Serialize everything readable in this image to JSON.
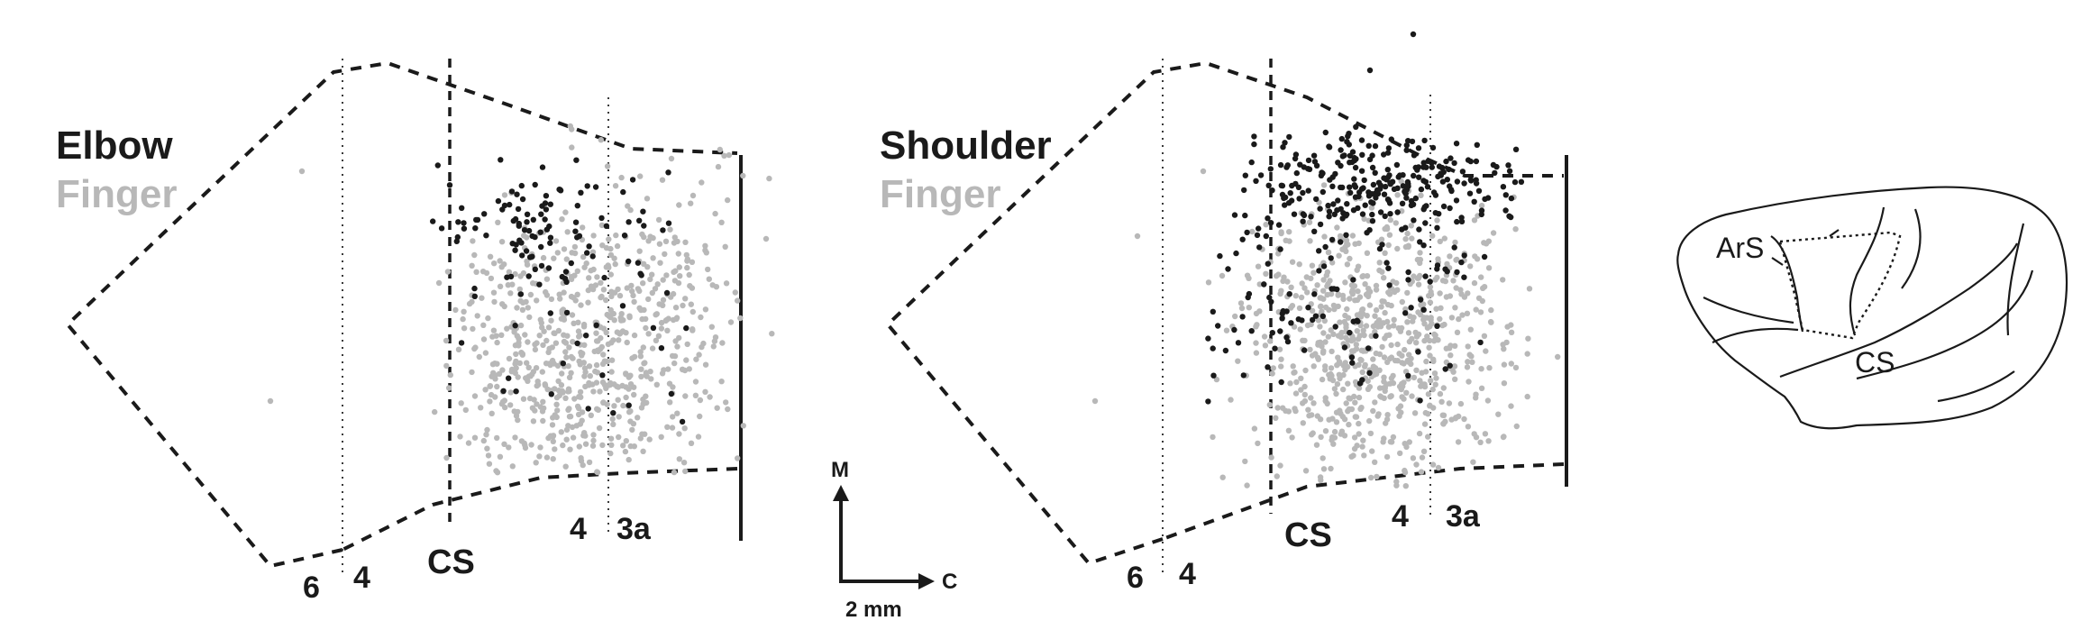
{
  "colors": {
    "elbow": "#1a1a1a",
    "shoulder": "#1a1a1a",
    "finger": "#b8b8b8",
    "ink": "#1a1a1a"
  },
  "panels": [
    {
      "legend": {
        "primary": "Elbow",
        "secondary": "Finger"
      },
      "labels": {
        "area6": "6",
        "area4_rostral": "4",
        "cs": "CS",
        "area4_caudal": "4",
        "area3a": "3a"
      },
      "distributions": {
        "finger_count": 720,
        "finger_sites_description": "broad cloud centered between CS and 3a border",
        "primary_count": 130
      }
    },
    {
      "legend": {
        "primary": "Shoulder",
        "secondary": "Finger"
      },
      "labels": {
        "area6": "6",
        "area4_rostral": "4",
        "cs": "CS",
        "area4_caudal": "4",
        "area3a": "3a"
      },
      "distributions": {
        "finger_count": 760,
        "primary_count": 380
      }
    }
  ],
  "scale_bar": {
    "up_label": "M",
    "right_label": "C",
    "length_label": "2 mm"
  },
  "brain_inset": {
    "arcuate_label": "ArS",
    "central_label": "CS"
  }
}
